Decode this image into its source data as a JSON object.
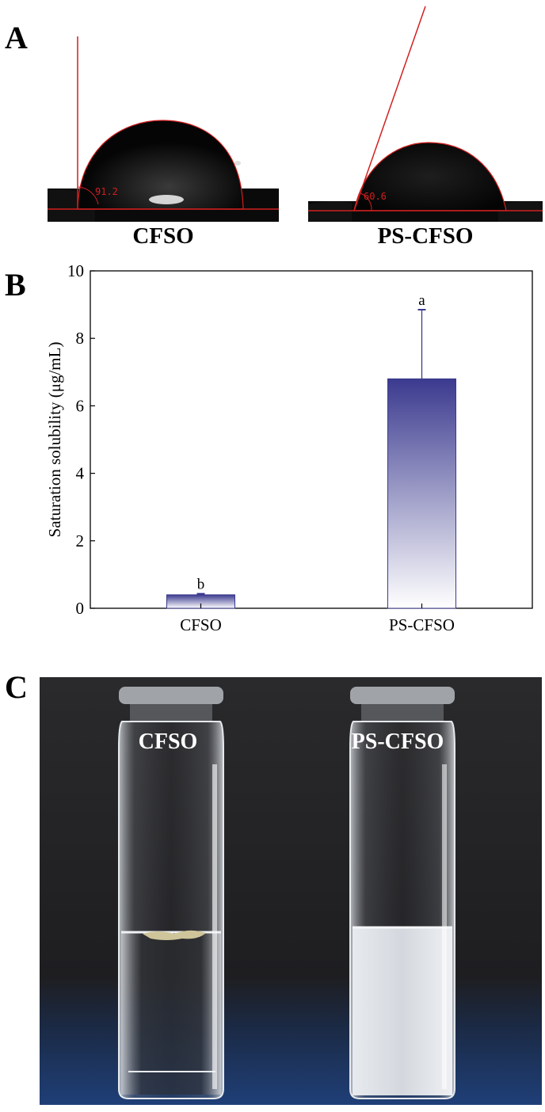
{
  "panels": {
    "a": {
      "letter": "A"
    },
    "b": {
      "letter": "B"
    },
    "c": {
      "letter": "C"
    }
  },
  "contact_angle": {
    "images": [
      {
        "label": "CFSO",
        "angle_text": "91.2",
        "angle_value": 91.2
      },
      {
        "label": "PS-CFSO",
        "angle_text": "60.6",
        "angle_value": 60.6
      }
    ]
  },
  "chart_data": {
    "type": "bar",
    "title": "",
    "xlabel": "",
    "ylabel": "Saturation solubility (μg/mL)",
    "categories": [
      "CFSO",
      "PS-CFSO"
    ],
    "values": [
      0.4,
      6.8
    ],
    "error": [
      0.03,
      2.05
    ],
    "significance": [
      "b",
      "a"
    ],
    "ylim": [
      0,
      10
    ],
    "yticks": [
      0,
      2,
      4,
      6,
      8,
      10
    ],
    "ytick_labels": [
      "0",
      "2",
      "4",
      "6",
      "8",
      "10"
    ],
    "bar_color_top": "#3b3a8f",
    "bar_color_bottom": "#ffffff",
    "grid": false
  },
  "vial_photo": {
    "labels": [
      "CFSO",
      "PS-CFSO"
    ]
  }
}
